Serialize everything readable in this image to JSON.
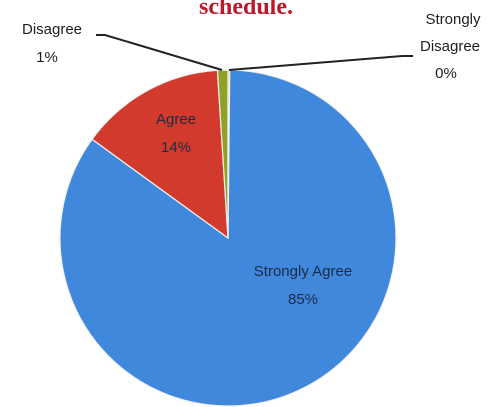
{
  "chart_data": {
    "type": "pie",
    "title": "schedule.",
    "slices": [
      {
        "name": "Strongly Agree",
        "value": 85,
        "label": "85%",
        "color": "#3f88dc"
      },
      {
        "name": "Agree",
        "value": 14,
        "label": "14%",
        "color": "#d13a2c"
      },
      {
        "name": "Disagree",
        "value": 1,
        "label": "1%",
        "color": "#8fa126"
      },
      {
        "name": "Strongly Disagree",
        "value": 0,
        "label": "0%",
        "color": "#e8d23a"
      }
    ],
    "label_lines": {
      "strongly_disagree_line1": "Strongly",
      "strongly_disagree_line2": "Disagree"
    },
    "slice_border_color": "#f2f2f2",
    "legend": "none"
  }
}
